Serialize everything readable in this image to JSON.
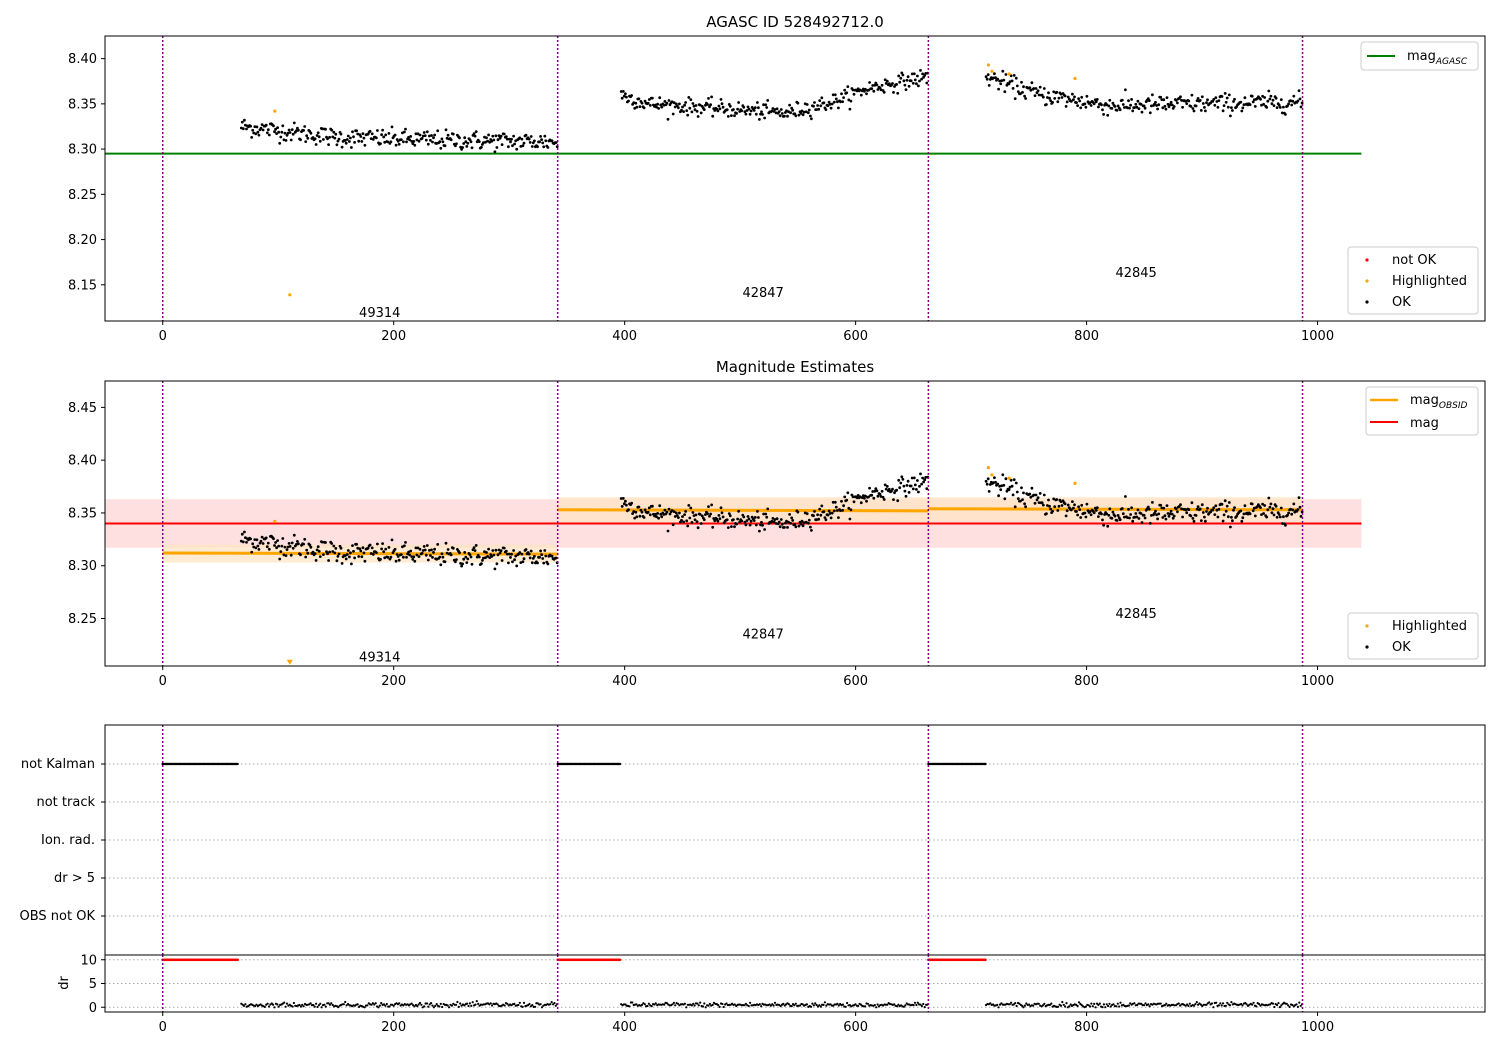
{
  "colors": {
    "ok": "#000000",
    "highlighted": "#ffa500",
    "not_ok": "#ff0000",
    "mag_agasc_line": "#008000",
    "mag_obsid_line": "#ffa500",
    "mag_line": "#ff0000",
    "obsid_boundary": "#800080",
    "mag_band": "#ffe0e0",
    "obsid_band": "#ffe4c4"
  },
  "chart_data": [
    {
      "type": "scatter",
      "title": "AGASC ID 528492712.0",
      "xlim": [
        -50,
        1145
      ],
      "ylim": [
        8.11,
        8.425
      ],
      "x_ticks": [
        0,
        200,
        400,
        600,
        800,
        1000
      ],
      "y_ticks": [
        8.15,
        8.2,
        8.25,
        8.3,
        8.35,
        8.4
      ],
      "obsid_boundaries": [
        0,
        342,
        663,
        987
      ],
      "obsid_labels": [
        {
          "text": "49314",
          "x": 170,
          "y": 8.12
        },
        {
          "text": "42847",
          "x": 502,
          "y": 8.142
        },
        {
          "text": "42845",
          "x": 825,
          "y": 8.164
        }
      ],
      "mag_agasc": {
        "value": 8.295,
        "x": [
          -50,
          1038
        ]
      },
      "segments": [
        {
          "x0": 68,
          "x1": 342,
          "trend": [
            [
              68,
              8.325
            ],
            [
              150,
              8.313
            ],
            [
              240,
              8.31
            ],
            [
              342,
              8.308
            ]
          ],
          "noise": 0.007
        },
        {
          "x0": 397,
          "x1": 663,
          "trend": [
            [
              397,
              8.36
            ],
            [
              420,
              8.35
            ],
            [
              540,
              8.34
            ],
            [
              580,
              8.352
            ],
            [
              610,
              8.367
            ],
            [
              663,
              8.38
            ]
          ],
          "noise": 0.006
        },
        {
          "x0": 713,
          "x1": 987,
          "trend": [
            [
              713,
              8.38
            ],
            [
              760,
              8.36
            ],
            [
              820,
              8.348
            ],
            [
              900,
              8.35
            ],
            [
              987,
              8.352
            ]
          ],
          "noise": 0.007
        }
      ],
      "highlighted_points": [
        [
          97,
          8.342
        ],
        [
          110,
          8.139
        ],
        [
          715,
          8.393
        ],
        [
          718,
          8.386
        ],
        [
          733,
          8.383
        ],
        [
          790,
          8.378
        ]
      ],
      "legend_upper": {
        "placement": "upper-right",
        "entries": [
          {
            "label": "mag",
            "sub": "AGASC",
            "kind": "line"
          }
        ]
      },
      "legend_lower": {
        "placement": "lower-right",
        "entries": [
          {
            "label": "not OK",
            "kind": "not_ok"
          },
          {
            "label": "Highlighted",
            "kind": "highlighted"
          },
          {
            "label": "OK",
            "kind": "ok"
          }
        ]
      }
    },
    {
      "type": "scatter",
      "title": "Magnitude Estimates",
      "xlim": [
        -50,
        1145
      ],
      "ylim": [
        8.205,
        8.475
      ],
      "x_ticks": [
        0,
        200,
        400,
        600,
        800,
        1000
      ],
      "y_ticks": [
        8.25,
        8.3,
        8.35,
        8.4,
        8.45
      ],
      "obsid_boundaries": [
        0,
        342,
        663,
        987
      ],
      "obsid_labels": [
        {
          "text": "49314",
          "x": 170,
          "y": 8.214
        },
        {
          "text": "42847",
          "x": 502,
          "y": 8.236
        },
        {
          "text": "42845",
          "x": 825,
          "y": 8.255
        }
      ],
      "mag": {
        "value": 8.34,
        "band": [
          8.317,
          8.363
        ],
        "x": [
          -50,
          1038
        ]
      },
      "mag_obsid": [
        {
          "x0": 0,
          "x1": 342,
          "y0": 8.312,
          "y1": 8.311,
          "band": 0.008
        },
        {
          "x0": 342,
          "x1": 663,
          "y0": 8.353,
          "y1": 8.352,
          "band": 0.012
        },
        {
          "x0": 663,
          "x1": 987,
          "y0": 8.354,
          "y1": 8.353,
          "band": 0.011
        }
      ],
      "segments": [
        {
          "x0": 68,
          "x1": 342,
          "trend": [
            [
              68,
              8.325
            ],
            [
              150,
              8.313
            ],
            [
              240,
              8.31
            ],
            [
              342,
              8.308
            ]
          ],
          "noise": 0.007
        },
        {
          "x0": 397,
          "x1": 663,
          "trend": [
            [
              397,
              8.36
            ],
            [
              420,
              8.35
            ],
            [
              540,
              8.34
            ],
            [
              580,
              8.352
            ],
            [
              610,
              8.367
            ],
            [
              663,
              8.38
            ]
          ],
          "noise": 0.006
        },
        {
          "x0": 713,
          "x1": 987,
          "trend": [
            [
              713,
              8.38
            ],
            [
              760,
              8.36
            ],
            [
              820,
              8.348
            ],
            [
              900,
              8.35
            ],
            [
              987,
              8.352
            ]
          ],
          "noise": 0.007
        }
      ],
      "highlighted_points": [
        [
          97,
          8.342
        ],
        [
          110,
          8.209
        ],
        [
          715,
          8.393
        ],
        [
          718,
          8.386
        ],
        [
          733,
          8.383
        ],
        [
          790,
          8.378
        ]
      ],
      "legend_upper": {
        "placement": "upper-right",
        "entries": [
          {
            "label": "mag",
            "sub": "OBSID",
            "kind": "obsid_line"
          },
          {
            "label": "mag",
            "kind": "mag_line"
          }
        ]
      },
      "legend_lower": {
        "placement": "lower-right",
        "entries": [
          {
            "label": "Highlighted",
            "kind": "highlighted"
          },
          {
            "label": "OK",
            "kind": "ok"
          }
        ]
      }
    },
    {
      "type": "scatter",
      "title": "",
      "xlim": [
        -50,
        1145
      ],
      "categories": [
        "not Kalman",
        "not track",
        "Ion. rad.",
        "dr > 5",
        "OBS not OK"
      ],
      "obsid_boundaries": [
        0,
        342,
        663,
        987
      ],
      "flags": [
        {
          "category": "not Kalman",
          "ranges": [
            [
              0,
              65
            ],
            [
              342,
              397
            ],
            [
              663,
              713
            ]
          ]
        }
      ]
    },
    {
      "type": "scatter",
      "title": "",
      "xlim": [
        -50,
        1145
      ],
      "ylim": [
        -1,
        11
      ],
      "x_ticks": [
        0,
        200,
        400,
        600,
        800,
        1000
      ],
      "y_ticks": [
        0,
        5,
        10
      ],
      "ylabel": "dr",
      "obsid_boundaries": [
        0,
        342,
        663,
        987
      ],
      "capped_value": 10,
      "capped_ranges": [
        [
          0,
          65
        ],
        [
          342,
          397
        ],
        [
          663,
          713
        ]
      ],
      "segments": [
        [
          68,
          342
        ],
        [
          397,
          663
        ],
        [
          713,
          987
        ]
      ],
      "dr_level": 0.5
    }
  ]
}
